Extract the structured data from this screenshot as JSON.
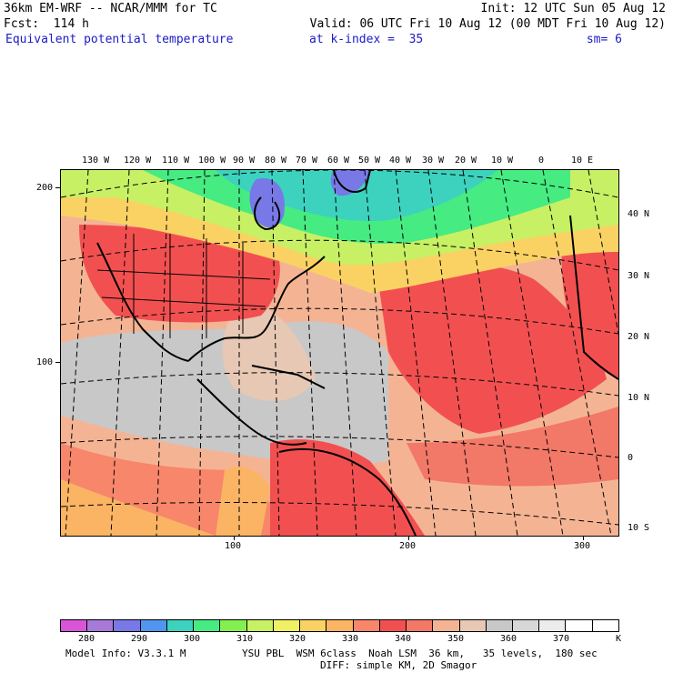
{
  "header": {
    "model_title": "36km EM-WRF -- NCAR/MMM for TC",
    "init": "Init: 12 UTC Sun 05 Aug 12",
    "forecast": "Fcst:  114 h",
    "valid": "Valid: 06 UTC Fri 10 Aug 12 (00 MDT Fri 10 Aug 12)",
    "field": "Equivalent potential temperature",
    "level": "at k-index =  35",
    "smoothing": "sm= 6"
  },
  "map": {
    "longitude_labels": [
      "130 W",
      "120 W",
      "110 W",
      "100 W",
      "90 W",
      "80 W",
      "70 W",
      "60 W",
      "50 W",
      "40 W",
      "30 W",
      "20 W",
      "10 W",
      "0",
      "10 E"
    ],
    "latitude_labels": [
      "40 N",
      "30 N",
      "20 N",
      "10 N",
      "0",
      "10 S"
    ],
    "y_grid_labels": [
      "200",
      "100"
    ],
    "x_grid_labels": [
      "100",
      "200",
      "300"
    ]
  },
  "colorbar": {
    "labels": [
      "280",
      "290",
      "300",
      "310",
      "320",
      "330",
      "340",
      "350",
      "360",
      "370"
    ],
    "unit": "K",
    "colors": [
      "#d855d8",
      "#a87ad8",
      "#7878e6",
      "#5096ee",
      "#3cd2be",
      "#46eb82",
      "#82f050",
      "#c8f064",
      "#f0f064",
      "#fad264",
      "#fab464",
      "#f8866a",
      "#f25050",
      "#f27868",
      "#f4b494",
      "#e6c8b4",
      "#c8c8c8",
      "#d7d7d7",
      "#ececec",
      "#ffffff",
      "#ffffff"
    ]
  },
  "footer": {
    "model_info": "Model Info: V3.3.1 M",
    "physics": "YSU PBL  WSM 6class  Noah LSM  36 km,   35 levels,  180 sec",
    "diffusion": "DIFF: simple KM, 2D Smagor"
  }
}
